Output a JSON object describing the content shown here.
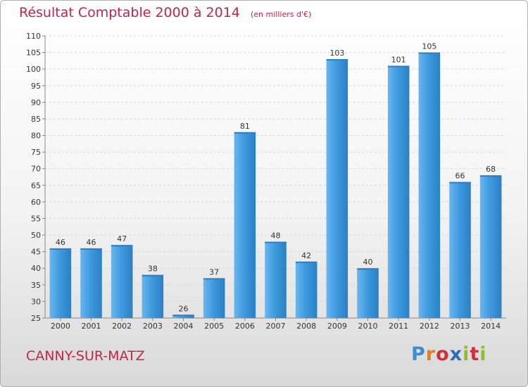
{
  "title": "Résultat Comptable 2000 à 2014",
  "subtitle": "(en milliers d'€)",
  "footer": {
    "commune": "CANNY-SUR-MATZ"
  },
  "logo": {
    "letters": [
      "P",
      "r",
      "o",
      "x",
      "i",
      "t",
      "i"
    ],
    "colors": [
      "#3b8fd0",
      "#e87d1e",
      "#d22f3c",
      "#2e6db4",
      "#8cbf26",
      "#d22f3c",
      "#8cbf26"
    ]
  },
  "colors": {
    "bar": "#3f9bde",
    "bar_light": "#6ab6ee",
    "bar_dark": "#2c7fc4",
    "accent": "#c0264a"
  },
  "chart_data": {
    "type": "bar",
    "categories": [
      "2000",
      "2001",
      "2002",
      "2003",
      "2004",
      "2005",
      "2006",
      "2007",
      "2008",
      "2009",
      "2010",
      "2011",
      "2012",
      "2013",
      "2014"
    ],
    "values": [
      46,
      46,
      47,
      38,
      26,
      37,
      81,
      48,
      42,
      103,
      40,
      101,
      105,
      66,
      68
    ],
    "ylim": [
      25,
      110
    ],
    "yticks": [
      25,
      30,
      35,
      40,
      45,
      50,
      55,
      60,
      65,
      70,
      75,
      80,
      85,
      90,
      95,
      100,
      105,
      110
    ],
    "grid": true,
    "xlabel": "",
    "ylabel": ""
  }
}
